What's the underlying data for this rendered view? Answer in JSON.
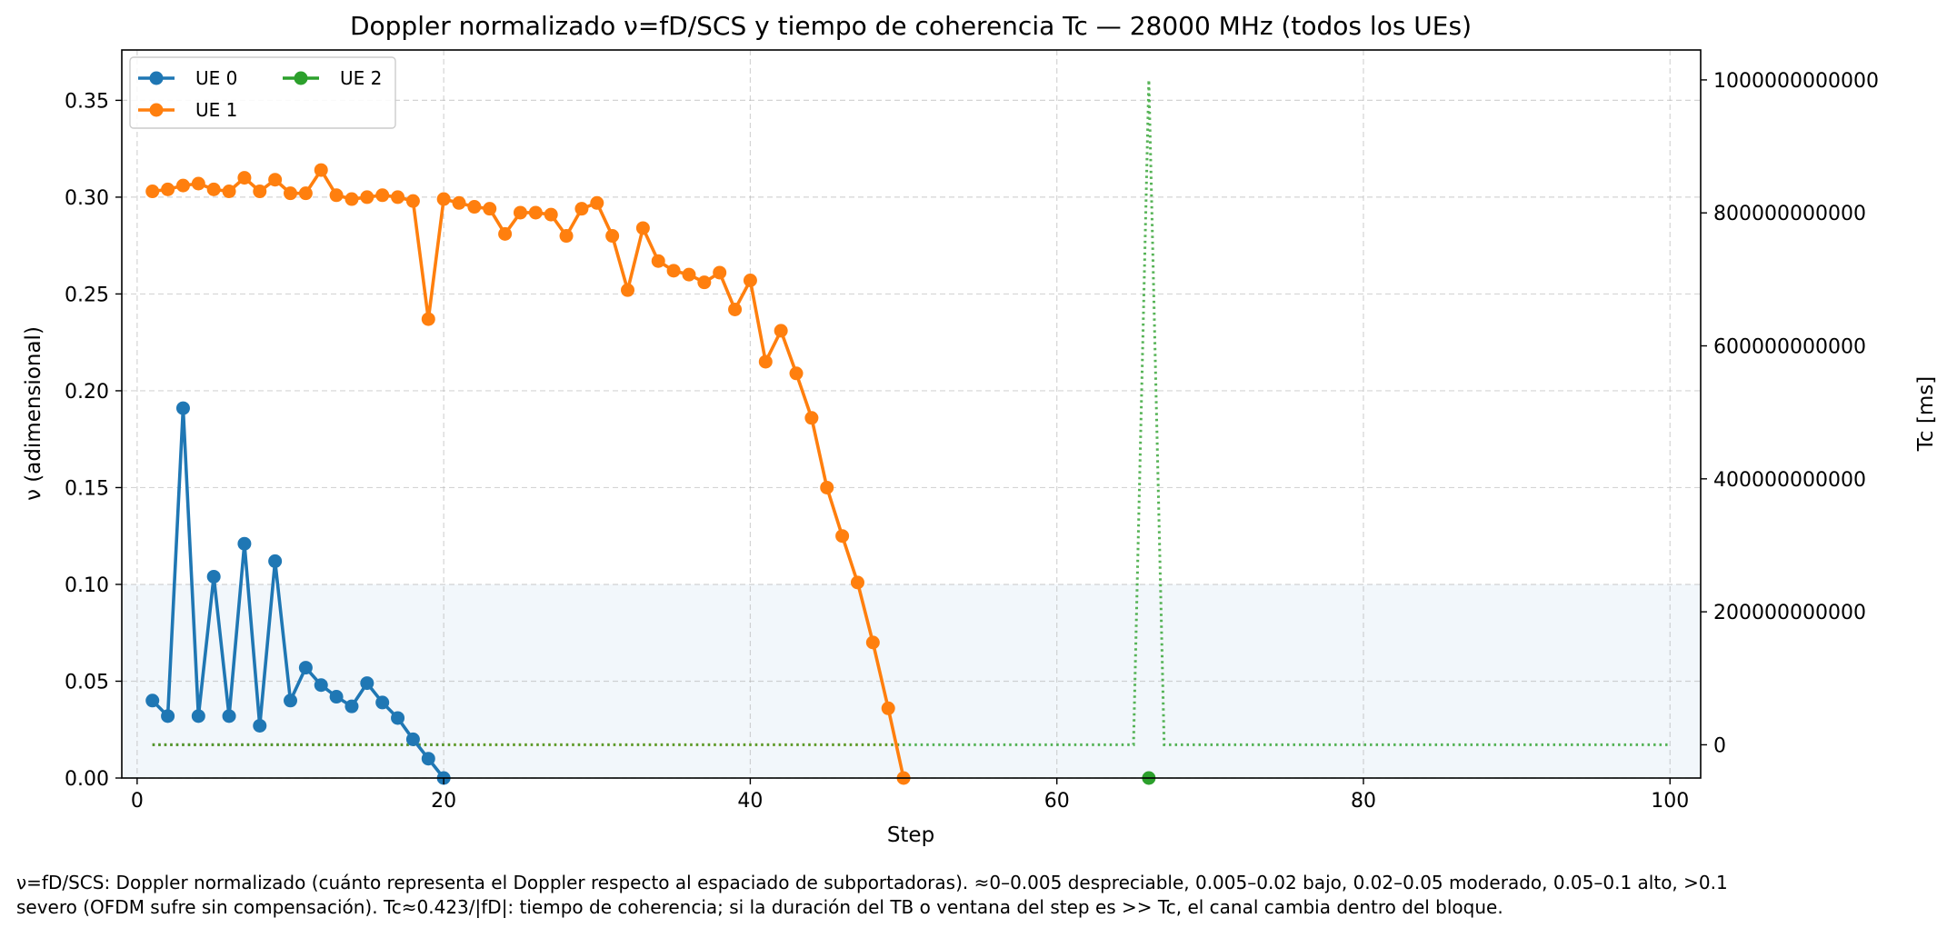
{
  "chart_data": {
    "type": "line",
    "title": "Doppler normalizado ν=fD/SCS y tiempo de coherencia Tc — 28000 MHz (todos los UEs)",
    "xlabel": "Step",
    "ylabel": "ν (adimensional)",
    "ylabel_right": "Tc [ms]",
    "xlim": [
      -1,
      102
    ],
    "ylim": [
      0,
      0.376
    ],
    "ylim_right": [
      -50000000000,
      1045000000000
    ],
    "xticks": [
      0,
      20,
      40,
      60,
      80,
      100
    ],
    "yticks": [
      0.0,
      0.05,
      0.1,
      0.15,
      0.2,
      0.25,
      0.3,
      0.35
    ],
    "yticks_right": [
      0,
      200000000000,
      400000000000,
      600000000000,
      800000000000,
      1000000000000
    ],
    "xtick_labels": [
      "0",
      "20",
      "40",
      "60",
      "80",
      "100"
    ],
    "ytick_labels": [
      "0.00",
      "0.05",
      "0.10",
      "0.15",
      "0.20",
      "0.25",
      "0.30",
      "0.35"
    ],
    "ytick_labels_right": [
      "0",
      "200000000000",
      "400000000000",
      "600000000000",
      "800000000000",
      "1000000000000"
    ],
    "grid": true,
    "legend_position": "top-left",
    "shaded_band": {
      "y_from": 0,
      "y_to": 0.1,
      "color": "#1f77b4"
    },
    "series": [
      {
        "name": "UE 0",
        "color": "#1f77b4",
        "x": [
          1,
          2,
          3,
          4,
          5,
          6,
          7,
          8,
          9,
          10,
          11,
          12,
          13,
          14,
          15,
          16,
          17,
          18,
          19,
          20
        ],
        "values": [
          0.04,
          0.032,
          0.191,
          0.032,
          0.104,
          0.032,
          0.121,
          0.027,
          0.112,
          0.04,
          0.057,
          0.048,
          0.042,
          0.037,
          0.049,
          0.039,
          0.031,
          0.02,
          0.01,
          0.0
        ]
      },
      {
        "name": "UE 1",
        "color": "#ff7f0e",
        "x": [
          1,
          2,
          3,
          4,
          5,
          6,
          7,
          8,
          9,
          10,
          11,
          12,
          13,
          14,
          15,
          16,
          17,
          18,
          19,
          20,
          21,
          22,
          23,
          24,
          25,
          26,
          27,
          28,
          29,
          30,
          31,
          32,
          33,
          34,
          35,
          36,
          37,
          38,
          39,
          40,
          41,
          42,
          43,
          44,
          45,
          46,
          47,
          48,
          49,
          50
        ],
        "values": [
          0.303,
          0.304,
          0.306,
          0.307,
          0.304,
          0.303,
          0.31,
          0.303,
          0.309,
          0.302,
          0.302,
          0.314,
          0.301,
          0.299,
          0.3,
          0.301,
          0.3,
          0.298,
          0.237,
          0.299,
          0.297,
          0.295,
          0.294,
          0.281,
          0.292,
          0.292,
          0.291,
          0.28,
          0.294,
          0.297,
          0.28,
          0.252,
          0.284,
          0.267,
          0.262,
          0.26,
          0.256,
          0.261,
          0.242,
          0.257,
          0.215,
          0.231,
          0.209,
          0.186,
          0.15,
          0.125,
          0.101,
          0.07,
          0.036,
          0.0
        ]
      },
      {
        "name": "UE 2",
        "color": "#2ca02c",
        "x": [
          66
        ],
        "values": [
          0.0
        ]
      }
    ],
    "tc_series": [
      {
        "ue": "UE 0",
        "color": "#1f77b4",
        "x": [
          1,
          20
        ],
        "values": [
          0,
          0
        ]
      },
      {
        "ue": "UE 1",
        "color": "#ff7f0e",
        "x": [
          1,
          50
        ],
        "values": [
          0,
          0
        ]
      },
      {
        "ue": "UE 2",
        "color": "#2ca02c",
        "x": [
          1,
          65,
          66,
          67,
          100
        ],
        "values": [
          0,
          0,
          1000000000000,
          0,
          0
        ]
      }
    ]
  },
  "caption": {
    "line1": "ν=fD/SCS: Doppler normalizado (cuánto representa el Doppler respecto al espaciado de subportadoras). ≈0–0.005 despreciable, 0.005–0.02 bajo, 0.02–0.05 moderado, 0.05–0.1 alto, >0.1",
    "line2": "severo (OFDM sufre sin compensación). Tc≈0.423/|fD|: tiempo de coherencia; si la duración del TB o ventana del step es >> Tc, el canal cambia dentro del bloque."
  }
}
